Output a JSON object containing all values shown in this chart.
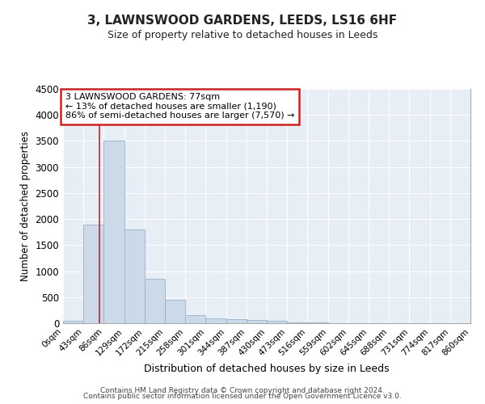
{
  "title": "3, LAWNSWOOD GARDENS, LEEDS, LS16 6HF",
  "subtitle": "Size of property relative to detached houses in Leeds",
  "xlabel": "Distribution of detached houses by size in Leeds",
  "ylabel": "Number of detached properties",
  "bin_labels": [
    "0sqm",
    "43sqm",
    "86sqm",
    "129sqm",
    "172sqm",
    "215sqm",
    "258sqm",
    "301sqm",
    "344sqm",
    "387sqm",
    "430sqm",
    "473sqm",
    "516sqm",
    "559sqm",
    "602sqm",
    "645sqm",
    "688sqm",
    "731sqm",
    "774sqm",
    "817sqm",
    "860sqm"
  ],
  "bar_values": [
    50,
    1900,
    3500,
    1800,
    850,
    450,
    150,
    100,
    75,
    65,
    50,
    20,
    10,
    5,
    5,
    5,
    5,
    5,
    5,
    5
  ],
  "bar_color": "#ccd9e8",
  "bar_edgecolor": "#9ab0c8",
  "red_line_x": 1.79,
  "annotation_text": "3 LAWNSWOOD GARDENS: 77sqm\n← 13% of detached houses are smaller (1,190)\n86% of semi-detached houses are larger (7,570) →",
  "annotation_box_facecolor": "#ffffff",
  "annotation_box_edgecolor": "#cc2222",
  "ylim": [
    0,
    4500
  ],
  "yticks": [
    0,
    500,
    1000,
    1500,
    2000,
    2500,
    3000,
    3500,
    4000,
    4500
  ],
  "footer_line1": "Contains HM Land Registry data © Crown copyright and database right 2024.",
  "footer_line2": "Contains public sector information licensed under the Open Government Licence v3.0.",
  "plot_bg_color": "#e8eef5",
  "grid_color": "#ffffff"
}
